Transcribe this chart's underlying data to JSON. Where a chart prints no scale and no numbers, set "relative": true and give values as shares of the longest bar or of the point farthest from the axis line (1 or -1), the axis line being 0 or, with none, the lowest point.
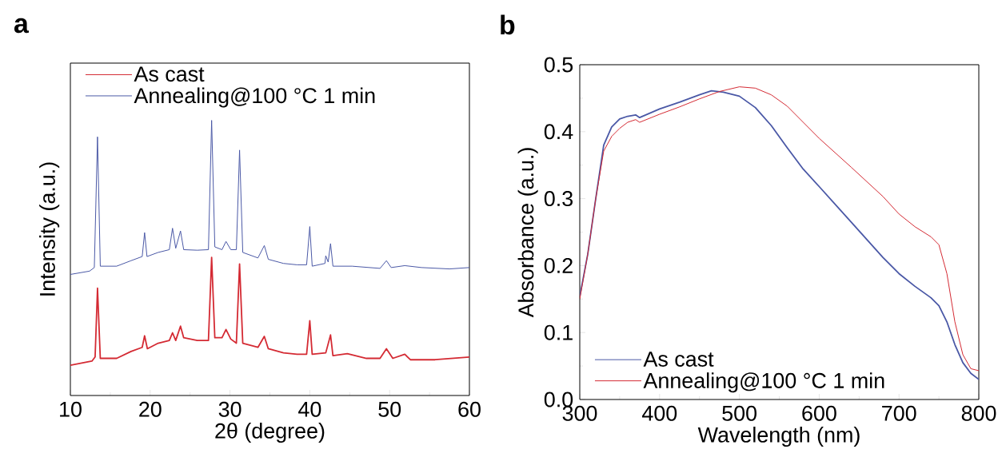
{
  "chart_data": [
    {
      "type": "line",
      "title": "a",
      "xlabel": "2θ (degree)",
      "ylabel": "Intensity (a.u.)",
      "relative": true,
      "xlim": [
        10,
        60
      ],
      "xticks": [
        10,
        20,
        30,
        40,
        50,
        60
      ],
      "legend": "top left",
      "series": [
        {
          "name": "As cast",
          "color": "#d42a33",
          "x": [
            10,
            12.7,
            13.1,
            13.4,
            13.75,
            15.8,
            17.6,
            19.0,
            19.3,
            19.65,
            21.0,
            22.4,
            22.8,
            23.2,
            23.8,
            24.2,
            25.9,
            27.3,
            27.7,
            28.1,
            29.0,
            29.5,
            30.1,
            30.8,
            31.2,
            31.6,
            33.5,
            34.3,
            34.8,
            36.7,
            38.4,
            39.6,
            40.0,
            40.3,
            42.0,
            42.6,
            42.9,
            44.7,
            47.1,
            48.8,
            49.6,
            50.4,
            51.9,
            52.6,
            55.7,
            60
          ],
          "values": [
            0.11,
            0.125,
            0.14,
            0.39,
            0.135,
            0.135,
            0.16,
            0.175,
            0.217,
            0.17,
            0.19,
            0.2,
            0.228,
            0.2,
            0.252,
            0.21,
            0.2,
            0.2,
            0.502,
            0.21,
            0.21,
            0.24,
            0.205,
            0.19,
            0.478,
            0.19,
            0.175,
            0.215,
            0.17,
            0.155,
            0.15,
            0.15,
            0.272,
            0.15,
            0.155,
            0.22,
            0.145,
            0.152,
            0.135,
            0.135,
            0.17,
            0.135,
            0.15,
            0.13,
            0.13,
            0.14
          ]
        },
        {
          "name": "Annealing@100 °C 1 min",
          "color": "#4a58a6",
          "x": [
            10,
            12.4,
            13.0,
            13.4,
            13.75,
            15.8,
            17.6,
            19.0,
            19.3,
            19.6,
            21.0,
            22.4,
            22.8,
            23.2,
            23.8,
            24.2,
            25.9,
            27.3,
            27.7,
            28.1,
            29.0,
            29.5,
            30.1,
            30.8,
            31.2,
            31.6,
            33.5,
            34.3,
            34.8,
            36.7,
            38.4,
            39.6,
            40.0,
            40.3,
            41.9,
            42.0,
            42.3,
            42.6,
            42.9,
            45.3,
            48.8,
            49.6,
            50.2,
            51.9,
            54.0,
            57.5,
            60
          ],
          "values": [
            0.44,
            0.452,
            0.465,
            0.94,
            0.47,
            0.47,
            0.49,
            0.505,
            0.592,
            0.505,
            0.52,
            0.53,
            0.608,
            0.535,
            0.598,
            0.53,
            0.528,
            0.53,
            1.0,
            0.54,
            0.53,
            0.56,
            0.53,
            0.53,
            0.892,
            0.52,
            0.5,
            0.545,
            0.495,
            0.48,
            0.475,
            0.475,
            0.614,
            0.47,
            0.48,
            0.508,
            0.485,
            0.552,
            0.47,
            0.47,
            0.462,
            0.49,
            0.465,
            0.472,
            0.465,
            0.46,
            0.465
          ]
        }
      ]
    },
    {
      "type": "line",
      "title": "b",
      "xlabel": "Wavelength (nm)",
      "ylabel": "Absorbance (a.u.)",
      "xlim": [
        300,
        800
      ],
      "ylim": [
        0,
        0.5
      ],
      "xticks": [
        300,
        400,
        500,
        600,
        700,
        800
      ],
      "yticks": [
        {
          "value": 0,
          "label": "0.0"
        },
        0.1,
        0.2,
        0.3,
        0.4,
        0.5
      ],
      "legend": "bottom left",
      "series": [
        {
          "name": "As cast",
          "color": "#4a58a6",
          "x": [
            300,
            310,
            320,
            330,
            340,
            350,
            360,
            370,
            375,
            400,
            425,
            450,
            465,
            480,
            500,
            520,
            540,
            560,
            580,
            600,
            640,
            680,
            700,
            720,
            740,
            750,
            760,
            770,
            780,
            790,
            800
          ],
          "values": [
            0.154,
            0.217,
            0.3,
            0.38,
            0.407,
            0.419,
            0.423,
            0.425,
            0.421,
            0.434,
            0.444,
            0.455,
            0.461,
            0.459,
            0.453,
            0.436,
            0.409,
            0.376,
            0.344,
            0.318,
            0.265,
            0.212,
            0.188,
            0.169,
            0.152,
            0.14,
            0.116,
            0.082,
            0.055,
            0.039,
            0.03
          ]
        },
        {
          "name": "Annealing@100 °C 1 min",
          "color": "#d42a33",
          "x": [
            300,
            310,
            320,
            330,
            340,
            350,
            360,
            370,
            375,
            400,
            425,
            450,
            475,
            500,
            520,
            540,
            560,
            580,
            600,
            640,
            680,
            700,
            720,
            740,
            750,
            760,
            770,
            780,
            790,
            800
          ],
          "values": [
            0.15,
            0.217,
            0.3,
            0.371,
            0.393,
            0.405,
            0.414,
            0.418,
            0.414,
            0.426,
            0.437,
            0.449,
            0.46,
            0.467,
            0.465,
            0.455,
            0.438,
            0.414,
            0.39,
            0.347,
            0.303,
            0.277,
            0.258,
            0.243,
            0.231,
            0.188,
            0.116,
            0.067,
            0.046,
            0.043
          ]
        }
      ]
    }
  ]
}
